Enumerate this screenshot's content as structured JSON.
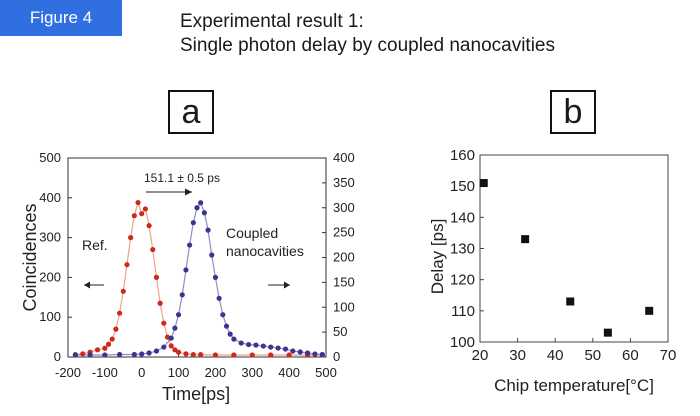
{
  "figure_label": "Figure 4",
  "title_line1": "Experimental result 1:",
  "title_line2": "Single photon delay by coupled nanocavities",
  "chart_data": [
    {
      "type": "scatter",
      "panel": "a",
      "xlabel": "Time[ps]",
      "ylabel": "Coincidences",
      "xlim": [
        -200,
        500
      ],
      "ylim": [
        0,
        500
      ],
      "y2lim": [
        0,
        400
      ],
      "xticks": [
        "-200",
        "-100",
        "0",
        "100",
        "200",
        "300",
        "400",
        "500"
      ],
      "yticks": [
        "0",
        "100",
        "200",
        "300",
        "400",
        "500"
      ],
      "y2ticks": [
        "0",
        "50",
        "100",
        "150",
        "200",
        "250",
        "300",
        "350",
        "400"
      ],
      "grid": false,
      "colors": {
        "ref": "#cc2a1a",
        "coupled": "#3a3590",
        "ref_line": "#f2a08a",
        "coupled_line": "#8f8cc8"
      },
      "annotations": {
        "delay": "151.1 ± 0.5 ps",
        "ref": "Ref.",
        "coupled_line1": "Coupled",
        "coupled_line2": "nanocavities"
      },
      "series": [
        {
          "axis": "left",
          "x": [
            -180,
            -160,
            -140,
            -120,
            -100,
            -90,
            -80,
            -70,
            -60,
            -50,
            -40,
            -30,
            -20,
            -10,
            0,
            10,
            20,
            30,
            40,
            50,
            60,
            70,
            80,
            90,
            100,
            120,
            140,
            160,
            200,
            250,
            300,
            350,
            400,
            450,
            490
          ],
          "y": [
            6,
            8,
            12,
            18,
            22,
            32,
            45,
            70,
            110,
            165,
            232,
            300,
            355,
            388,
            360,
            372,
            330,
            270,
            200,
            135,
            85,
            50,
            28,
            18,
            12,
            8,
            6,
            6,
            5,
            5,
            5,
            5,
            5,
            5,
            5
          ]
        },
        {
          "axis": "right",
          "x": [
            -180,
            -140,
            -100,
            -60,
            -20,
            0,
            20,
            40,
            60,
            80,
            90,
            100,
            110,
            120,
            130,
            140,
            150,
            160,
            170,
            180,
            190,
            200,
            210,
            220,
            230,
            240,
            250,
            270,
            290,
            310,
            330,
            350,
            370,
            390,
            410,
            430,
            450,
            470,
            490
          ],
          "y": [
            4,
            4,
            4,
            5,
            5,
            6,
            8,
            12,
            20,
            38,
            58,
            85,
            125,
            175,
            225,
            270,
            300,
            310,
            290,
            255,
            205,
            160,
            118,
            85,
            62,
            46,
            36,
            28,
            25,
            24,
            22,
            20,
            18,
            16,
            12,
            10,
            8,
            6,
            5
          ]
        }
      ]
    },
    {
      "type": "scatter",
      "panel": "b",
      "xlabel": "Chip temperature[°C]",
      "ylabel": "Delay [ps]",
      "xlim": [
        20,
        70
      ],
      "ylim": [
        100,
        160
      ],
      "xticks": [
        "20",
        "30",
        "40",
        "50",
        "60",
        "70"
      ],
      "yticks": [
        "100",
        "110",
        "120",
        "130",
        "140",
        "150",
        "160"
      ],
      "grid": false,
      "colors": {
        "points": "#111111"
      },
      "series": [
        {
          "x": [
            21,
            32,
            44,
            54,
            65
          ],
          "y": [
            151,
            133,
            113,
            103,
            110
          ]
        }
      ]
    }
  ]
}
